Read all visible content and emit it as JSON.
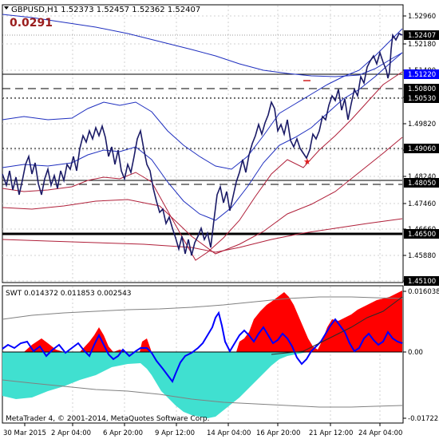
{
  "main_panel": {
    "title_text": "GBPUSD,H1  1.52373 1.52457 1.52362 1.52407",
    "spread_label": "0.0291",
    "current_price_label": "1.52407",
    "y_labels": [
      "1.52960",
      "1.52180",
      "1.51400",
      "1.50620",
      "1.49820",
      "1.49040",
      "1.48240",
      "1.47460",
      "1.46660",
      "1.45880",
      "1.45100"
    ],
    "level_labels": [
      {
        "text": "1.52407",
        "color": "#000000",
        "text_color": "#ffffff"
      },
      {
        "text": "1.51220",
        "color": "#0000ff",
        "text_color": "#ffffff"
      },
      {
        "text": "1.50800",
        "color": "#000000",
        "text_color": "#ffffff"
      },
      {
        "text": "1.50530",
        "color": "#000000",
        "text_color": "#ffffff"
      },
      {
        "text": "1.49060",
        "color": "#000000",
        "text_color": "#ffffff"
      },
      {
        "text": "1.48050",
        "color": "#000000",
        "text_color": "#ffffff"
      },
      {
        "text": "1.46500",
        "color": "#000000",
        "text_color": "#ffffff"
      },
      {
        "text": "1.45100",
        "color": "#000000",
        "text_color": "#ffffff"
      }
    ]
  },
  "indicator_panel": {
    "title_text": "SWT 0.014372 0.011853 0.002543",
    "y_labels": [
      "0.016038",
      "0.00",
      "-0.017223"
    ],
    "watermark": "MetaTrader 4, © 2001-2014, MetaQuotes Software Corp."
  },
  "x_labels": [
    "30 Mar 2015",
    "2 Apr 04:00",
    "6 Apr 20:00",
    "9 Apr 12:00",
    "14 Apr 04:00",
    "16 Apr 20:00",
    "21 Apr 12:00",
    "24 Apr 04:00"
  ],
  "colors": {
    "price": "#1a1a66",
    "ma_blue": "#1f2fbf",
    "band_red": "#b0203a",
    "swt_red": "#ff0000",
    "swt_cyan": "#40e0d0",
    "swt_blue_line": "#0000ff",
    "grid": "#c8c8c8",
    "accent": "#9a1d1d"
  }
}
